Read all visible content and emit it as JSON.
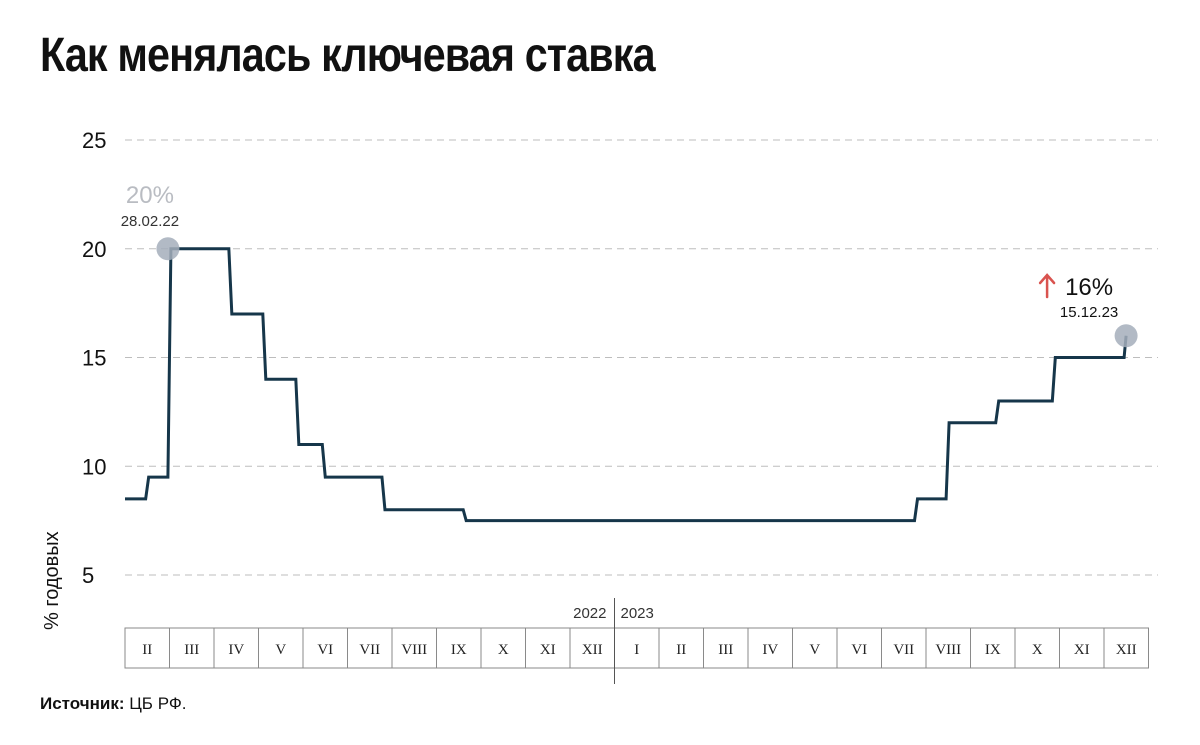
{
  "title": "Как менялась ключевая ставка",
  "source_label": "Источник:",
  "source_text": "ЦБ РФ.",
  "chart_data": {
    "type": "line",
    "step": true,
    "ylabel": "% годовых",
    "ylim": [
      0,
      25
    ],
    "yticks": [
      5,
      10,
      15,
      20,
      25
    ],
    "grid": true,
    "line_color": "#16364a",
    "year_labels": [
      "2022",
      "2023"
    ],
    "months": [
      {
        "label": "II",
        "year": 2022
      },
      {
        "label": "III",
        "year": 2022
      },
      {
        "label": "IV",
        "year": 2022
      },
      {
        "label": "V",
        "year": 2022
      },
      {
        "label": "VI",
        "year": 2022
      },
      {
        "label": "VII",
        "year": 2022
      },
      {
        "label": "VIII",
        "year": 2022
      },
      {
        "label": "IX",
        "year": 2022
      },
      {
        "label": "X",
        "year": 2022
      },
      {
        "label": "XI",
        "year": 2022
      },
      {
        "label": "XII",
        "year": 2022
      },
      {
        "label": "I",
        "year": 2023
      },
      {
        "label": "II",
        "year": 2023
      },
      {
        "label": "III",
        "year": 2023
      },
      {
        "label": "IV",
        "year": 2023
      },
      {
        "label": "V",
        "year": 2023
      },
      {
        "label": "VI",
        "year": 2023
      },
      {
        "label": "VII",
        "year": 2023
      },
      {
        "label": "VIII",
        "year": 2023
      },
      {
        "label": "IX",
        "year": 2023
      },
      {
        "label": "X",
        "year": 2023
      },
      {
        "label": "XI",
        "year": 2023
      },
      {
        "label": "XII",
        "year": 2023
      }
    ],
    "points": [
      {
        "date": "2022-02-01",
        "value": 8.5
      },
      {
        "date": "2022-02-14",
        "value": 9.5
      },
      {
        "date": "2022-02-28",
        "value": 20
      },
      {
        "date": "2022-04-11",
        "value": 17
      },
      {
        "date": "2022-05-04",
        "value": 14
      },
      {
        "date": "2022-05-27",
        "value": 11
      },
      {
        "date": "2022-06-14",
        "value": 9.5
      },
      {
        "date": "2022-07-25",
        "value": 8
      },
      {
        "date": "2022-09-19",
        "value": 7.5
      },
      {
        "date": "2023-07-24",
        "value": 8.5
      },
      {
        "date": "2023-08-15",
        "value": 12
      },
      {
        "date": "2023-09-18",
        "value": 13
      },
      {
        "date": "2023-10-27",
        "value": 15
      },
      {
        "date": "2023-12-15",
        "value": 16
      }
    ],
    "end_date": "2023-12-15",
    "annotations": [
      {
        "label": "20%",
        "date_label": "28.02.22",
        "date": "2022-02-28",
        "value": 20,
        "marker_color": "#a4aebb",
        "trend": ""
      },
      {
        "label": "16%",
        "date_label": "15.12.23",
        "date": "2023-12-15",
        "value": 16,
        "marker_color": "#a4aebb",
        "trend": "up",
        "trend_color": "#d9534f"
      }
    ]
  }
}
